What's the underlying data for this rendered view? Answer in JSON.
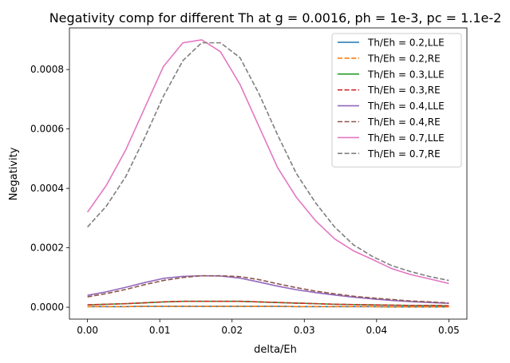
{
  "chart_data": {
    "type": "line",
    "title": "Negativity comp for different Th at g = 0.0016, ph = 1e-3, pc = 1.1e-2",
    "xlabel": "delta/Eh",
    "ylabel": "Negativity",
    "xlim": [
      -0.0025,
      0.0525
    ],
    "ylim": [
      -4e-05,
      0.00094
    ],
    "xticks": [
      0.0,
      0.01,
      0.02,
      0.03,
      0.04,
      0.05
    ],
    "xtick_labels": [
      "0.00",
      "0.01",
      "0.02",
      "0.03",
      "0.04",
      "0.05"
    ],
    "yticks": [
      0.0,
      0.0002,
      0.0004,
      0.0006,
      0.0008
    ],
    "ytick_labels": [
      "0.0000",
      "0.0002",
      "0.0004",
      "0.0006",
      "0.0008"
    ],
    "grid": false,
    "legend_position": "top-right",
    "x": [
      0.0,
      0.0026,
      0.0053,
      0.0079,
      0.0105,
      0.0132,
      0.0158,
      0.0184,
      0.0211,
      0.0237,
      0.0263,
      0.0289,
      0.0316,
      0.0342,
      0.0368,
      0.0395,
      0.0421,
      0.0447,
      0.0474,
      0.05
    ],
    "series": [
      {
        "name": "Th/Eh = 0.2,LLE",
        "color": "#1f77b4",
        "dash": "solid",
        "values": [
          2e-06,
          2e-06,
          2e-06,
          3e-06,
          3e-06,
          3e-06,
          3e-06,
          3e-06,
          3e-06,
          3e-06,
          3e-06,
          2e-06,
          2e-06,
          2e-06,
          2e-06,
          2e-06,
          1e-06,
          1e-06,
          1e-06,
          1e-06
        ]
      },
      {
        "name": "Th/Eh = 0.2,RE",
        "color": "#ff7f0e",
        "dash": "dashed",
        "values": [
          2e-06,
          2e-06,
          2e-06,
          3e-06,
          3e-06,
          3e-06,
          3e-06,
          3e-06,
          3e-06,
          3e-06,
          3e-06,
          2e-06,
          2e-06,
          2e-06,
          2e-06,
          2e-06,
          1e-06,
          1e-06,
          1e-06,
          1e-06
        ]
      },
      {
        "name": "Th/Eh = 0.3,LLE",
        "color": "#2ca02c",
        "dash": "solid",
        "values": [
          8e-06,
          1e-05,
          1.2e-05,
          1.5e-05,
          1.8e-05,
          2e-05,
          2e-05,
          2e-05,
          2e-05,
          1.8e-05,
          1.6e-05,
          1.4e-05,
          1.2e-05,
          1e-05,
          9e-06,
          8e-06,
          7e-06,
          6e-06,
          6e-06,
          5e-06
        ]
      },
      {
        "name": "Th/Eh = 0.3,RE",
        "color": "#d62728",
        "dash": "dashed",
        "values": [
          8e-06,
          1e-05,
          1.2e-05,
          1.5e-05,
          1.8e-05,
          2e-05,
          2e-05,
          2e-05,
          2e-05,
          1.8e-05,
          1.6e-05,
          1.4e-05,
          1.2e-05,
          1e-05,
          9e-06,
          8e-06,
          7e-06,
          6e-06,
          6e-06,
          5e-06
        ]
      },
      {
        "name": "Th/Eh = 0.4,LLE",
        "color": "#9467bd",
        "dash": "solid",
        "values": [
          4e-05,
          5.2e-05,
          6.7e-05,
          8.3e-05,
          9.7e-05,
          0.000104,
          0.000106,
          0.000105,
          9.8e-05,
          8.5e-05,
          7.1e-05,
          5.9e-05,
          4.9e-05,
          4.1e-05,
          3.4e-05,
          2.8e-05,
          2.3e-05,
          1.9e-05,
          1.6e-05,
          1.3e-05
        ]
      },
      {
        "name": "Th/Eh = 0.4,RE",
        "color": "#8c564b",
        "dash": "dashed",
        "values": [
          3.5e-05,
          4.6e-05,
          6e-05,
          7.6e-05,
          9e-05,
          0.0001,
          0.000106,
          0.000106,
          0.000103,
          9.3e-05,
          7.9e-05,
          6.6e-05,
          5.4e-05,
          4.5e-05,
          3.7e-05,
          3.1e-05,
          2.6e-05,
          2.1e-05,
          1.8e-05,
          1.4e-05
        ]
      },
      {
        "name": "Th/Eh = 0.7,LLE",
        "color": "#e377c2",
        "dash": "solid",
        "values": [
          0.00032,
          0.00041,
          0.00053,
          0.00067,
          0.00081,
          0.00089,
          0.0009,
          0.00086,
          0.00075,
          0.00061,
          0.00047,
          0.00037,
          0.00029,
          0.00023,
          0.00019,
          0.00016,
          0.00013,
          0.00011,
          9.5e-05,
          8e-05
        ]
      },
      {
        "name": "Th/Eh = 0.7,RE",
        "color": "#7f7f7f",
        "dash": "dashed",
        "values": [
          0.00027,
          0.00034,
          0.00044,
          0.00057,
          0.00071,
          0.00083,
          0.00089,
          0.00089,
          0.00084,
          0.00072,
          0.00058,
          0.00045,
          0.00035,
          0.00027,
          0.00021,
          0.00017,
          0.00014,
          0.00012,
          0.000103,
          9e-05
        ]
      }
    ]
  }
}
